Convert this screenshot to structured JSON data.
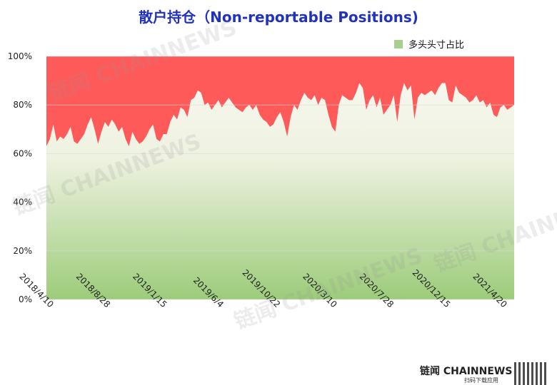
{
  "title": "散户持仓（Non-reportable Positions)",
  "legend": {
    "label": "多头头寸占比",
    "swatch_color": "#a8d08d"
  },
  "watermark": "链闻 CHAINNEWS",
  "brand": {
    "name": "链闻 CHAINNEWS",
    "sub": "扫码下载应用"
  },
  "colors": {
    "fill_top": "#ff5a5a",
    "fill_bottom": "#9ccc7a",
    "fill_light": "#f6f7ee",
    "grid": "#d9d9d9"
  },
  "chart_data": {
    "type": "area",
    "title": "散户持仓（Non-reportable Positions)",
    "xlabel": "",
    "ylabel": "",
    "ylim": [
      0,
      100
    ],
    "y_tick_labels": [
      "0%",
      "20%",
      "40%",
      "60%",
      "80%",
      "100%"
    ],
    "x_tick_labels": [
      "2018/4/10",
      "2018/8/28",
      "2019/1/15",
      "2019/6/4",
      "2019/10/22",
      "2020/3/10",
      "2020/7/28",
      "2020/12/15",
      "2021/4/20"
    ],
    "grid": true,
    "legend_position": "top-right",
    "series": [
      {
        "name": "多头头寸占比",
        "values": [
          63,
          66,
          72,
          65,
          67,
          66,
          68,
          71,
          65,
          64,
          66,
          68,
          72,
          75,
          70,
          64,
          69,
          73,
          71,
          74,
          72,
          69,
          71,
          66,
          63,
          69,
          66,
          64,
          65,
          67,
          70,
          72,
          66,
          65,
          68,
          68,
          73,
          76,
          74,
          79,
          78,
          75,
          82,
          83,
          86,
          85,
          80,
          81,
          78,
          80,
          82,
          79,
          81,
          83,
          81,
          79,
          78,
          77,
          79,
          80,
          78,
          80,
          76,
          74,
          73,
          71,
          72,
          75,
          77,
          73,
          67,
          75,
          80,
          78,
          82,
          85,
          83,
          82,
          84,
          80,
          83,
          82,
          76,
          71,
          69,
          80,
          84,
          83,
          82,
          82,
          85,
          89,
          87,
          78,
          82,
          84,
          79,
          83,
          76,
          78,
          80,
          84,
          73,
          84,
          89,
          86,
          88,
          74,
          83,
          85,
          84,
          85,
          86,
          84,
          87,
          89,
          89,
          82,
          81,
          88,
          85,
          84,
          83,
          81,
          82,
          84,
          81,
          82,
          79,
          81,
          76,
          75,
          79,
          80,
          78,
          79,
          80
        ]
      }
    ]
  }
}
